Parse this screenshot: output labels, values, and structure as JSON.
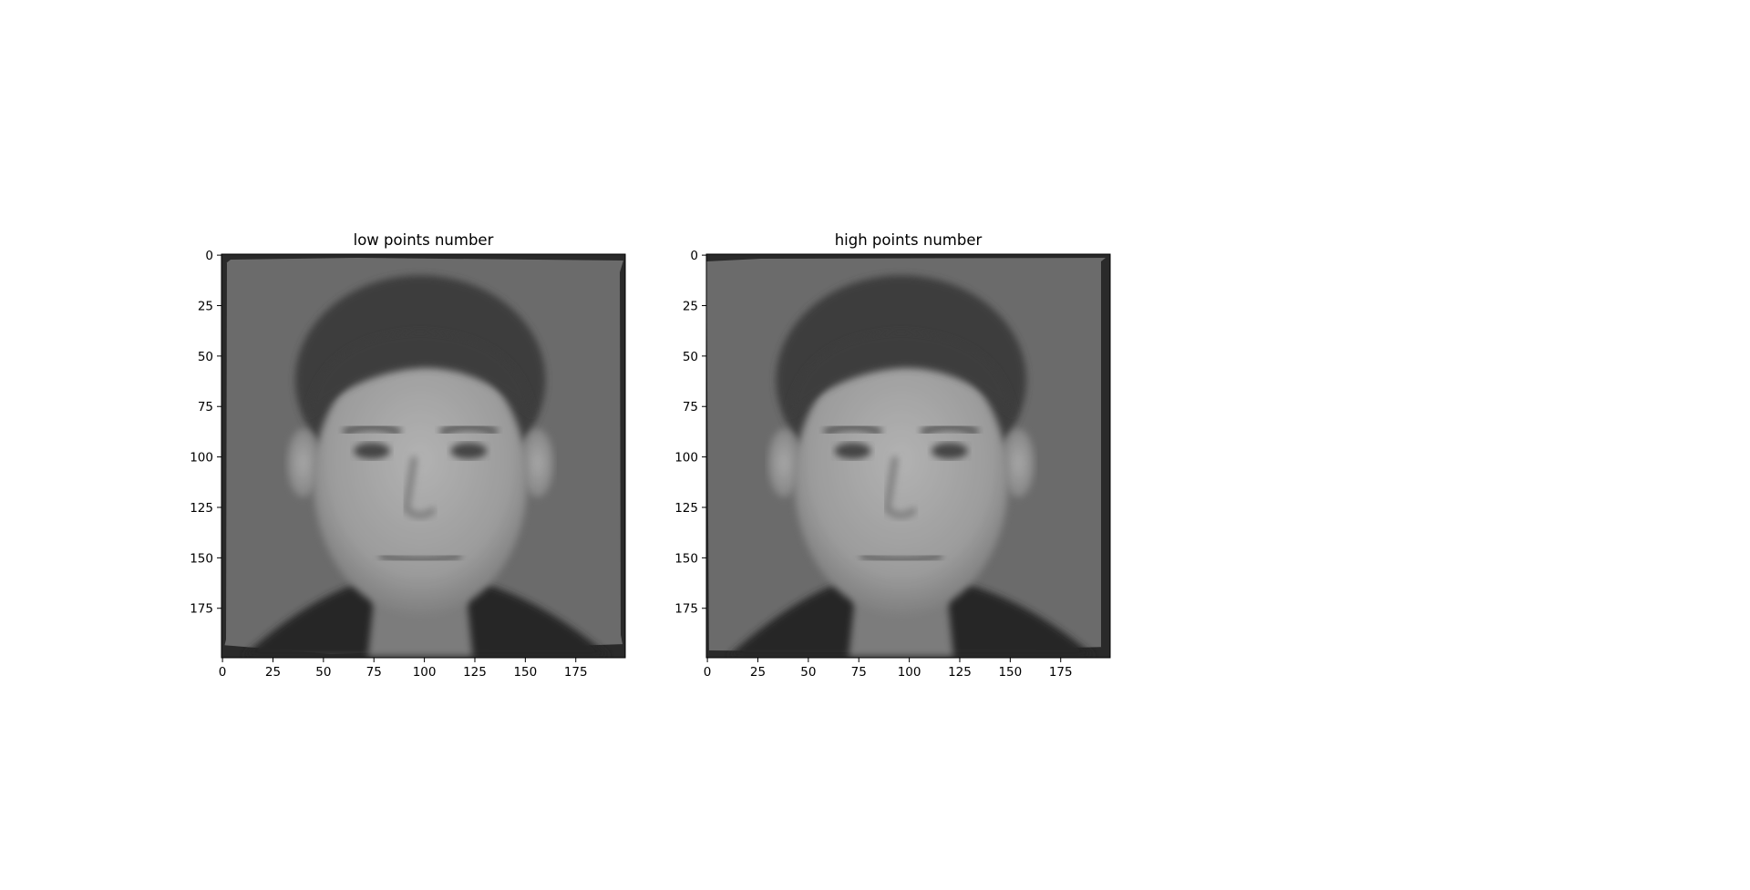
{
  "chart_data": [
    {
      "type": "image",
      "title": "low points number",
      "xlim": [
        0,
        199
      ],
      "ylim": [
        0,
        199
      ],
      "y_inverted": true,
      "x_ticks": [
        0,
        25,
        50,
        75,
        100,
        125,
        150,
        175
      ],
      "y_ticks": [
        0,
        25,
        50,
        75,
        100,
        125,
        150,
        175
      ],
      "x_tick_labels": [
        "0",
        "25",
        "50",
        "75",
        "100",
        "125",
        "150",
        "175"
      ],
      "y_tick_labels": [
        "0",
        "25",
        "50",
        "75",
        "100",
        "125",
        "150",
        "175"
      ],
      "colormap": "gray",
      "content": "grayscale morphed face"
    },
    {
      "type": "image",
      "title": "high points number",
      "xlim": [
        0,
        199
      ],
      "ylim": [
        0,
        199
      ],
      "y_inverted": true,
      "x_ticks": [
        0,
        25,
        50,
        75,
        100,
        125,
        150,
        175
      ],
      "y_ticks": [
        0,
        25,
        50,
        75,
        100,
        125,
        150,
        175
      ],
      "x_tick_labels": [
        "0",
        "25",
        "50",
        "75",
        "100",
        "125",
        "150",
        "175"
      ],
      "y_tick_labels": [
        "0",
        "25",
        "50",
        "75",
        "100",
        "125",
        "150",
        "175"
      ],
      "colormap": "gray",
      "content": "grayscale morphed face"
    }
  ],
  "colors": {
    "background": "#ffffff",
    "image_bg": "#6b6b6b",
    "border_dark": "#2a2a2a",
    "hair": "#3c3c3c",
    "skin": "#a4a4a4",
    "shirt": "#262626",
    "axis": "#000000"
  }
}
